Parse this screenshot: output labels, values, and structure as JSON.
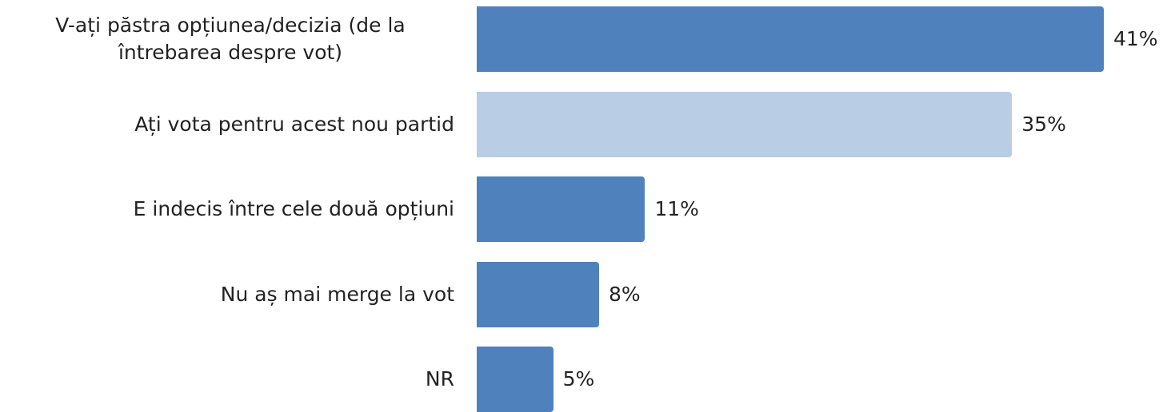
{
  "chart_data": {
    "type": "bar",
    "orientation": "horizontal",
    "categories": [
      "V-ați păstra opțiunea/decizia (de la întrebarea despre vot)",
      "Ați vota pentru acest nou partid",
      "E indecis între cele două opțiuni",
      "Nu aș mai merge la vot",
      "NR"
    ],
    "values": [
      41,
      35,
      11,
      8,
      5
    ],
    "value_labels": [
      "41%",
      "35%",
      "11%",
      "8%",
      "5%"
    ],
    "colors": [
      "#4f81bd",
      "#b9cde5",
      "#4f81bd",
      "#4f81bd",
      "#4f81bd"
    ]
  }
}
